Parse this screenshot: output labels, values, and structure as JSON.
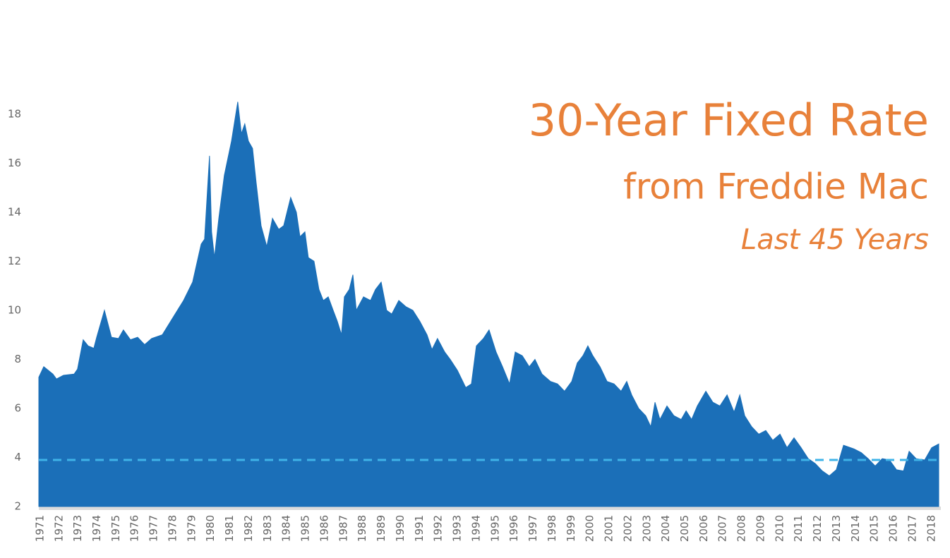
{
  "chart_data": {
    "type": "area",
    "title": "30-Year Fixed Rate",
    "subtitle": "from Freddie Mac",
    "annotation": "Last 45 Years",
    "color": "#1b6fb8",
    "x": [
      1970.93,
      1971.19,
      1971.67,
      1971.86,
      1972.23,
      1972.79,
      1972.97,
      1973.27,
      1973.53,
      1973.83,
      1973.98,
      1974.39,
      1974.76,
      1975.13,
      1975.39,
      1975.76,
      1976.14,
      1976.51,
      1976.88,
      1977.44,
      1978.0,
      1978.56,
      1979.04,
      1979.49,
      1979.67,
      1979.93,
      1980.04,
      1980.19,
      1980.42,
      1980.71,
      1981.09,
      1981.42,
      1981.61,
      1981.79,
      1981.98,
      1982.2,
      1982.39,
      1982.65,
      1982.95,
      1983.25,
      1983.58,
      1983.84,
      1984.21,
      1984.51,
      1984.7,
      1984.96,
      1985.14,
      1985.44,
      1985.7,
      1985.93,
      1986.19,
      1986.45,
      1986.67,
      1986.89,
      1987.04,
      1987.3,
      1987.49,
      1987.67,
      1988.05,
      1988.42,
      1988.68,
      1988.98,
      1989.27,
      1989.54,
      1989.91,
      1990.28,
      1990.65,
      1991.02,
      1991.4,
      1991.66,
      1991.95,
      1992.33,
      1992.62,
      1993.0,
      1993.44,
      1993.74,
      1994.0,
      1994.37,
      1994.67,
      1995.04,
      1995.38,
      1995.75,
      1996.05,
      1996.42,
      1996.79,
      1997.09,
      1997.46,
      1997.91,
      1998.28,
      1998.65,
      1999.03,
      1999.32,
      1999.62,
      1999.88,
      2000.14,
      2000.52,
      2000.89,
      2001.26,
      2001.63,
      2001.93,
      2002.19,
      2002.56,
      2002.93,
      2003.2,
      2003.42,
      2003.68,
      2004.05,
      2004.42,
      2004.8,
      2005.06,
      2005.35,
      2005.65,
      2006.1,
      2006.47,
      2006.84,
      2007.22,
      2007.59,
      2007.89,
      2008.15,
      2008.52,
      2008.89,
      2009.26,
      2009.63,
      2010.01,
      2010.38,
      2010.75,
      2011.12,
      2011.5,
      2011.87,
      2012.24,
      2012.61,
      2012.98,
      2013.36,
      2013.91,
      2014.29,
      2014.66,
      2015.03,
      2015.4,
      2015.78,
      2016.15,
      2016.52,
      2016.82,
      2017.19,
      2017.64,
      2018.01,
      2018.38
    ],
    "values": [
      7.27,
      7.7,
      7.4,
      7.2,
      7.35,
      7.4,
      7.6,
      8.8,
      8.55,
      8.45,
      8.9,
      10.0,
      8.9,
      8.85,
      9.2,
      8.8,
      8.9,
      8.6,
      8.85,
      9.0,
      9.7,
      10.4,
      11.15,
      12.7,
      12.9,
      16.3,
      13.2,
      12.15,
      13.75,
      15.5,
      16.9,
      18.5,
      17.2,
      17.6,
      16.9,
      16.6,
      15.2,
      13.45,
      12.6,
      13.75,
      13.3,
      13.45,
      14.6,
      14.0,
      13.0,
      13.2,
      12.15,
      12.0,
      10.85,
      10.4,
      10.55,
      10.0,
      9.55,
      9.0,
      10.55,
      10.85,
      11.45,
      10.0,
      10.55,
      10.4,
      10.85,
      11.15,
      10.0,
      9.85,
      10.4,
      10.15,
      10.0,
      9.55,
      9.0,
      8.4,
      8.85,
      8.3,
      8.0,
      7.55,
      6.85,
      7.0,
      8.55,
      8.85,
      9.2,
      8.3,
      7.7,
      7.0,
      8.3,
      8.15,
      7.7,
      8.0,
      7.4,
      7.1,
      7.0,
      6.7,
      7.1,
      7.85,
      8.15,
      8.55,
      8.15,
      7.7,
      7.1,
      7.0,
      6.7,
      7.1,
      6.55,
      6.0,
      5.7,
      5.25,
      6.25,
      5.55,
      6.1,
      5.7,
      5.55,
      5.9,
      5.55,
      6.1,
      6.7,
      6.25,
      6.1,
      6.55,
      5.85,
      6.55,
      5.7,
      5.25,
      4.95,
      5.1,
      4.7,
      4.95,
      4.4,
      4.8,
      4.4,
      3.95,
      3.75,
      3.45,
      3.25,
      3.5,
      4.5,
      4.35,
      4.2,
      3.95,
      3.65,
      3.95,
      3.9,
      3.5,
      3.45,
      4.25,
      3.95,
      3.9,
      4.4,
      4.55
    ],
    "reference_line": {
      "value": 3.9,
      "color": "#3fb3e8"
    },
    "xlim": [
      1970.93,
      2018.49
    ],
    "xticks": [
      1971,
      1972,
      1973,
      1974,
      1975,
      1976,
      1977,
      1978,
      1979,
      1980,
      1981,
      1982,
      1983,
      1984,
      1985,
      1986,
      1987,
      1988,
      1989,
      1990,
      1991,
      1992,
      1993,
      1994,
      1995,
      1996,
      1997,
      1998,
      1999,
      2000,
      2001,
      2002,
      2003,
      2004,
      2005,
      2006,
      2007,
      2008,
      2009,
      2010,
      2011,
      2012,
      2013,
      2014,
      2015,
      2016,
      2017,
      2018
    ],
    "ylim": [
      2,
      19
    ],
    "yticks": [
      2,
      4,
      6,
      8,
      10,
      12,
      14,
      16,
      18
    ]
  }
}
